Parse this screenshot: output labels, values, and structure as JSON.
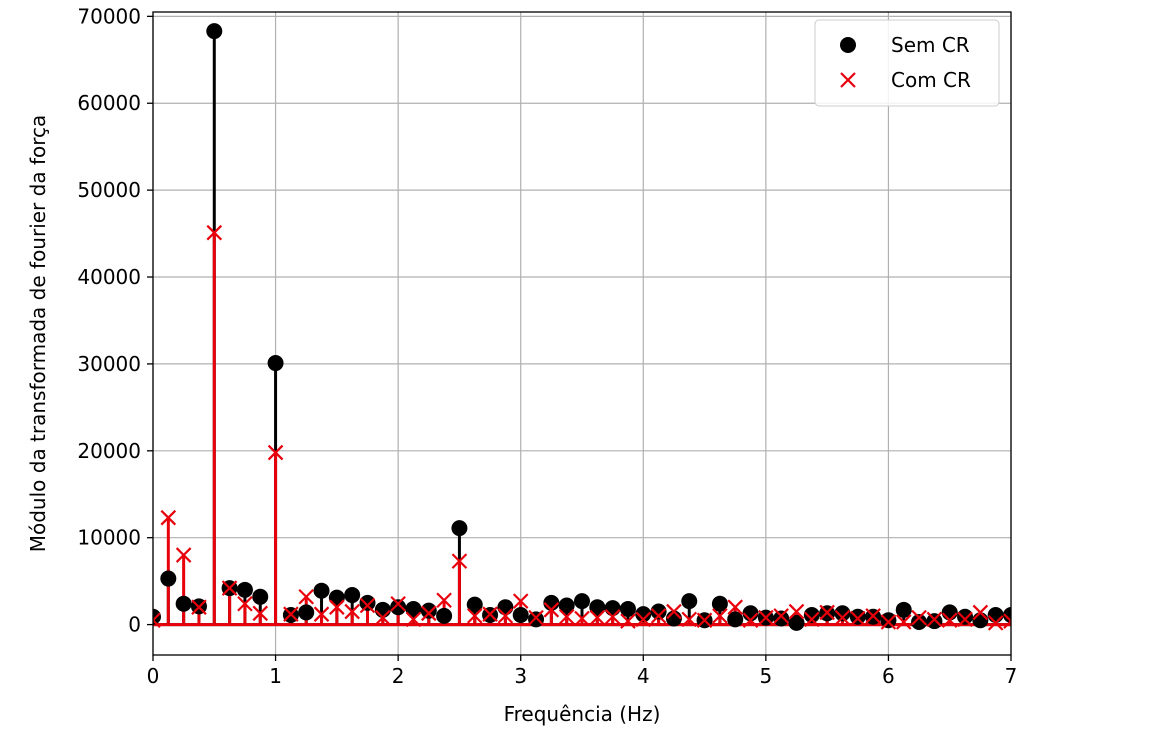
{
  "chart_data": {
    "type": "scatter",
    "style": "stem",
    "title": "",
    "xlabel": "Frequência (Hz)",
    "ylabel": "Módulo da transformada de fourier da força",
    "xlim": [
      0,
      7
    ],
    "ylim": [
      -3500,
      70500
    ],
    "xticks": [
      0,
      1,
      2,
      3,
      4,
      5,
      6,
      7
    ],
    "yticks": [
      0,
      10000,
      20000,
      30000,
      40000,
      50000,
      60000,
      70000
    ],
    "grid": true,
    "legend_position": "top-right",
    "x": [
      0,
      0.125,
      0.25,
      0.375,
      0.5,
      0.625,
      0.75,
      0.875,
      1.0,
      1.125,
      1.25,
      1.375,
      1.5,
      1.625,
      1.75,
      1.875,
      2.0,
      2.125,
      2.25,
      2.375,
      2.5,
      2.625,
      2.75,
      2.875,
      3.0,
      3.125,
      3.25,
      3.375,
      3.5,
      3.625,
      3.75,
      3.875,
      4.0,
      4.125,
      4.25,
      4.375,
      4.5,
      4.625,
      4.75,
      4.875,
      5.0,
      5.125,
      5.25,
      5.375,
      5.5,
      5.625,
      5.75,
      5.875,
      6.0,
      6.125,
      6.25,
      6.375,
      6.5,
      6.625,
      6.75,
      6.875,
      7.0
    ],
    "series": [
      {
        "name": "Sem CR",
        "marker": "circle",
        "color": "#000000",
        "values": [
          900,
          5300,
          2400,
          2100,
          68300,
          4200,
          4000,
          3200,
          30100,
          1100,
          1400,
          3900,
          3100,
          3400,
          2500,
          1700,
          2000,
          1800,
          1600,
          1000,
          11100,
          2300,
          1100,
          2000,
          1100,
          600,
          2500,
          2200,
          2700,
          2000,
          1900,
          1800,
          1200,
          1500,
          700,
          2700,
          500,
          2400,
          600,
          1300,
          800,
          700,
          200,
          1100,
          1300,
          1300,
          900,
          900,
          500,
          1700,
          300,
          400,
          1400,
          900,
          500,
          1100,
          1100
        ]
      },
      {
        "name": "Com CR",
        "marker": "x",
        "color": "#e8000b",
        "values": [
          500,
          12300,
          8000,
          2000,
          45100,
          4200,
          2400,
          1300,
          19800,
          1200,
          3200,
          1200,
          2000,
          1500,
          2200,
          800,
          2400,
          600,
          1300,
          2800,
          7300,
          1000,
          1200,
          1000,
          2700,
          800,
          1700,
          900,
          700,
          800,
          900,
          400,
          600,
          1000,
          1500,
          600,
          500,
          1000,
          2000,
          500,
          800,
          1000,
          1500,
          600,
          1400,
          800,
          700,
          1000,
          300,
          300,
          800,
          600,
          500,
          600,
          1400,
          200,
          400
        ]
      }
    ]
  }
}
